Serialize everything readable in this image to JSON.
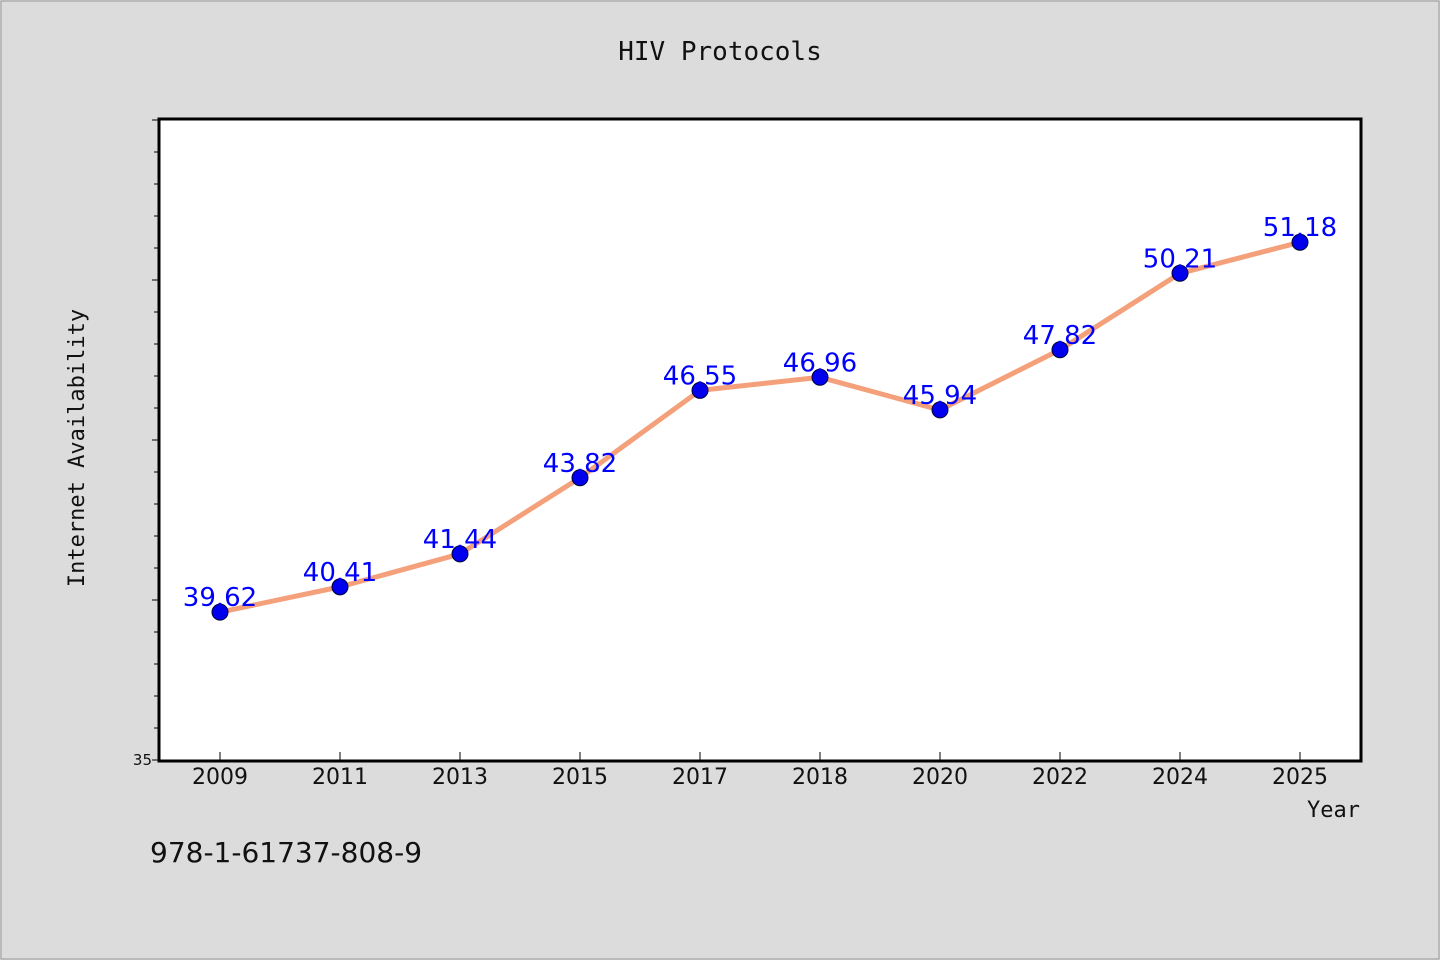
{
  "chart_data": {
    "type": "line",
    "title": "HIV Protocols",
    "xlabel": "Year",
    "ylabel": "Internet Availability",
    "categories": [
      "2009",
      "2011",
      "2013",
      "2015",
      "2017",
      "2018",
      "2020",
      "2022",
      "2024",
      "2025"
    ],
    "values": [
      39.62,
      40.41,
      41.44,
      43.82,
      46.55,
      46.96,
      45.94,
      47.82,
      50.21,
      51.18
    ],
    "data_labels": [
      "39.62",
      "40.41",
      "41.44",
      "43.82",
      "46.55",
      "46.96",
      "45.94",
      "47.82",
      "50.21",
      "51.18"
    ],
    "ylim": [
      35,
      55
    ],
    "y_tick_labels": [
      "35"
    ],
    "grid": false,
    "line_color": "#f4a07a",
    "marker_color": "#0000ee",
    "label_color": "#0000ff"
  },
  "footer": {
    "isbn": "978-1-61737-808-9"
  }
}
